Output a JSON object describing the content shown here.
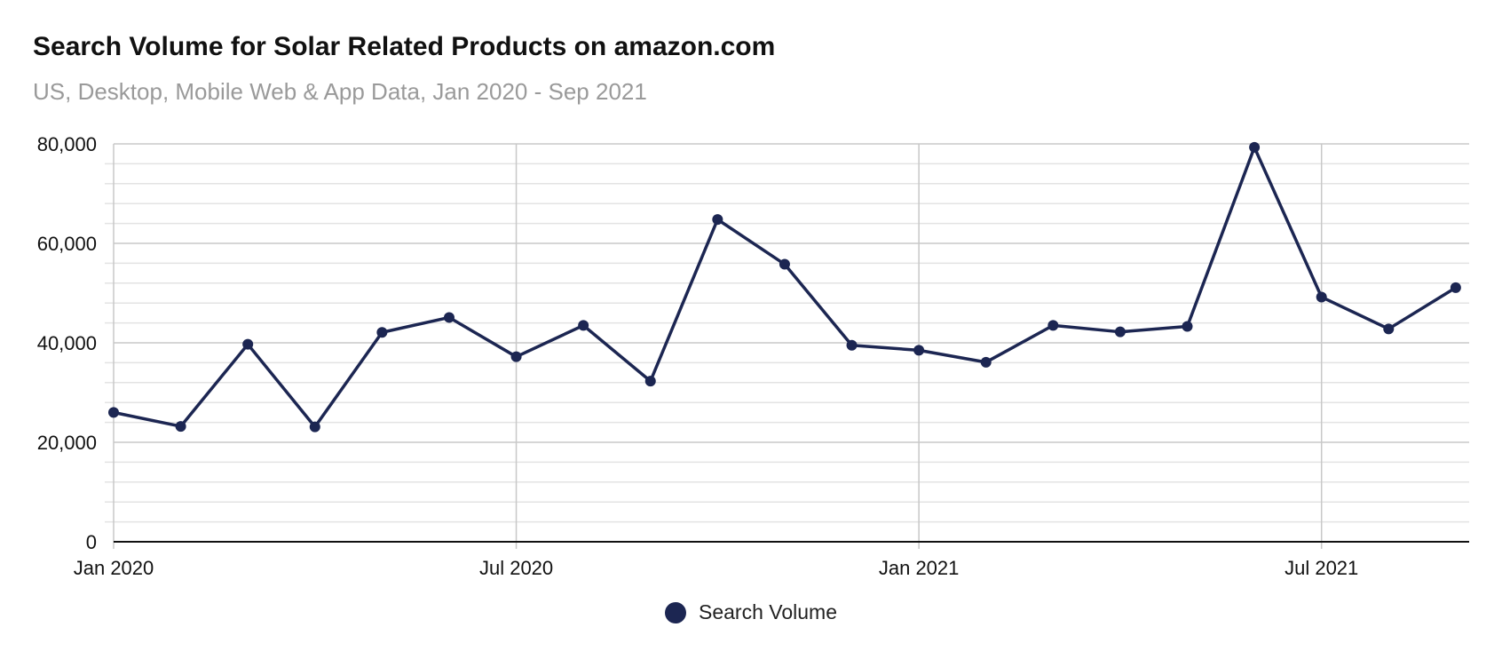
{
  "title": "Search Volume for Solar Related Products on amazon.com",
  "subtitle": "US, Desktop, Mobile Web & App Data, Jan 2020 - Sep 2021",
  "colors": {
    "series": "#1c2652",
    "grid_major": "#c8c8c8",
    "grid_minor": "#e3e3e3",
    "axis": "#111111"
  },
  "chart_data": {
    "type": "line",
    "title": "Search Volume for Solar Related Products on amazon.com",
    "subtitle": "US, Desktop, Mobile Web & App Data, Jan 2020 - Sep 2021",
    "x": [
      "2020-01",
      "2020-02",
      "2020-03",
      "2020-04",
      "2020-05",
      "2020-06",
      "2020-07",
      "2020-08",
      "2020-09",
      "2020-10",
      "2020-11",
      "2020-12",
      "2021-01",
      "2021-02",
      "2021-03",
      "2021-04",
      "2021-05",
      "2021-06",
      "2021-07",
      "2021-08",
      "2021-09"
    ],
    "x_tick_labels": [
      "Jan 2020",
      "Jul 2020",
      "Jan 2021",
      "Jul 2021"
    ],
    "series": [
      {
        "name": "Search Volume",
        "values": [
          26000,
          23200,
          39700,
          23100,
          42100,
          45100,
          37200,
          43500,
          32300,
          64800,
          55800,
          39500,
          38500,
          36100,
          43500,
          42200,
          43300,
          79300,
          49200,
          42800,
          51100
        ]
      }
    ],
    "ylim": [
      0,
      80000
    ],
    "y_ticks": [
      0,
      20000,
      40000,
      60000,
      80000
    ],
    "y_tick_labels": [
      "0",
      "20,000",
      "40,000",
      "60,000",
      "80,000"
    ],
    "grid": true,
    "legend": "bottom-center"
  }
}
